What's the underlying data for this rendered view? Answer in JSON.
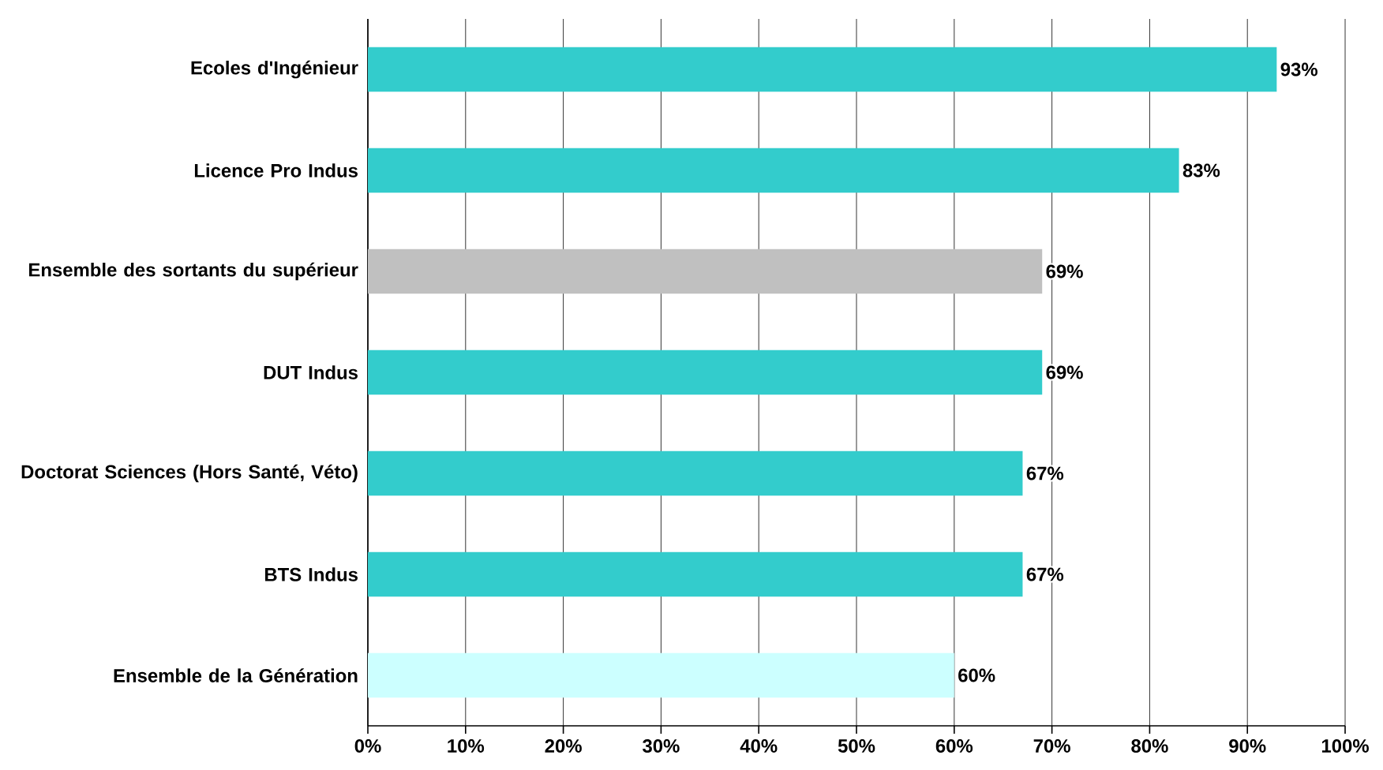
{
  "chart_data": {
    "type": "bar",
    "orientation": "horizontal",
    "categories": [
      "Ecoles d'Ingénieur",
      "Licence Pro Indus",
      "Ensemble des sortants du supérieur",
      "DUT Indus",
      "Doctorat Sciences (Hors Santé, Véto)",
      "BTS Indus",
      "Ensemble de la Génération"
    ],
    "values": [
      93,
      83,
      69,
      69,
      67,
      67,
      60
    ],
    "colors": [
      "#33cccc",
      "#33cccc",
      "#c0c0c0",
      "#33cccc",
      "#33cccc",
      "#33cccc",
      "#ccffff"
    ],
    "value_labels": [
      "93%",
      "83%",
      "69%",
      "69%",
      "67%",
      "67%",
      "60%"
    ],
    "xlim": [
      0,
      100
    ],
    "xticks": [
      {
        "value": 0,
        "label": "0%"
      },
      {
        "value": 10,
        "label": "10%"
      },
      {
        "value": 20,
        "label": "20%"
      },
      {
        "value": 30,
        "label": "30%"
      },
      {
        "value": 40,
        "label": "40%"
      },
      {
        "value": 50,
        "label": "50%"
      },
      {
        "value": 60,
        "label": "60%"
      },
      {
        "value": 70,
        "label": "70%"
      },
      {
        "value": 80,
        "label": "80%"
      },
      {
        "value": 90,
        "label": "90%"
      },
      {
        "value": 100,
        "label": "100%"
      }
    ],
    "grid": "x"
  }
}
